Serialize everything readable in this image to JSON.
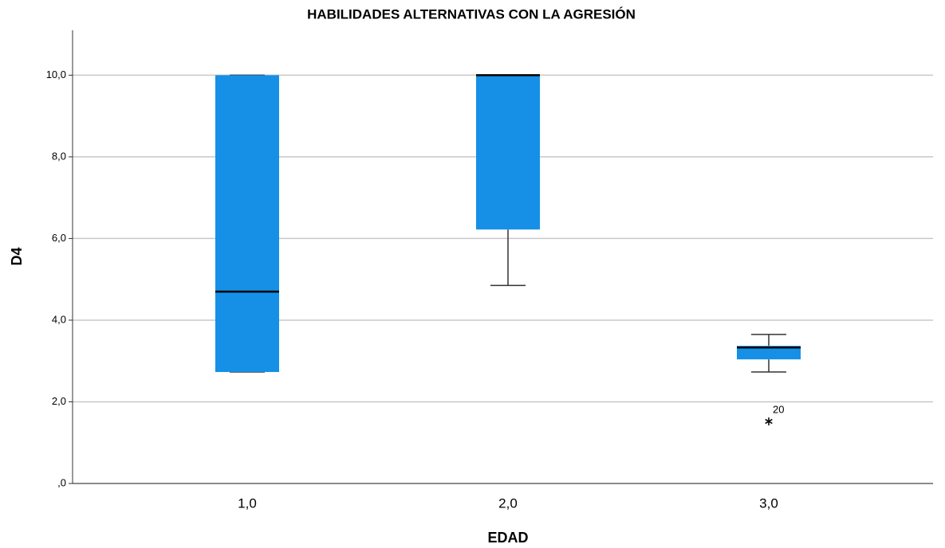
{
  "chart_data": {
    "type": "box",
    "title": "HABILIDADES ALTERNATIVAS CON LA AGRESIÓN",
    "x_label": "EDAD",
    "y_label": "D4",
    "categories": [
      "1,0",
      "2,0",
      "3,0"
    ],
    "boxes": [
      {
        "min": 2.73,
        "q1": 2.73,
        "median": 4.7,
        "q3": 10,
        "max": 10,
        "outliers": []
      },
      {
        "min": 4.85,
        "q1": 6.22,
        "median": 10,
        "q3": 10,
        "max": 10,
        "outliers": []
      },
      {
        "min": 2.73,
        "q1": 3.04,
        "median": 3.33,
        "q3": 3.37,
        "max": 3.65,
        "outliers": [
          {
            "value": 1.52,
            "case": "20"
          }
        ]
      }
    ],
    "color": "#1590e6",
    "ylim": [
      0,
      11.1
    ],
    "yticks": [
      {
        "value": 0,
        "label": ",0"
      },
      {
        "value": 2,
        "label": "2,0"
      },
      {
        "value": 4,
        "label": "4,0"
      },
      {
        "value": 6,
        "label": "6,0"
      },
      {
        "value": 8,
        "label": "8,0"
      },
      {
        "value": 10,
        "label": "10,0"
      }
    ],
    "grid": true
  }
}
